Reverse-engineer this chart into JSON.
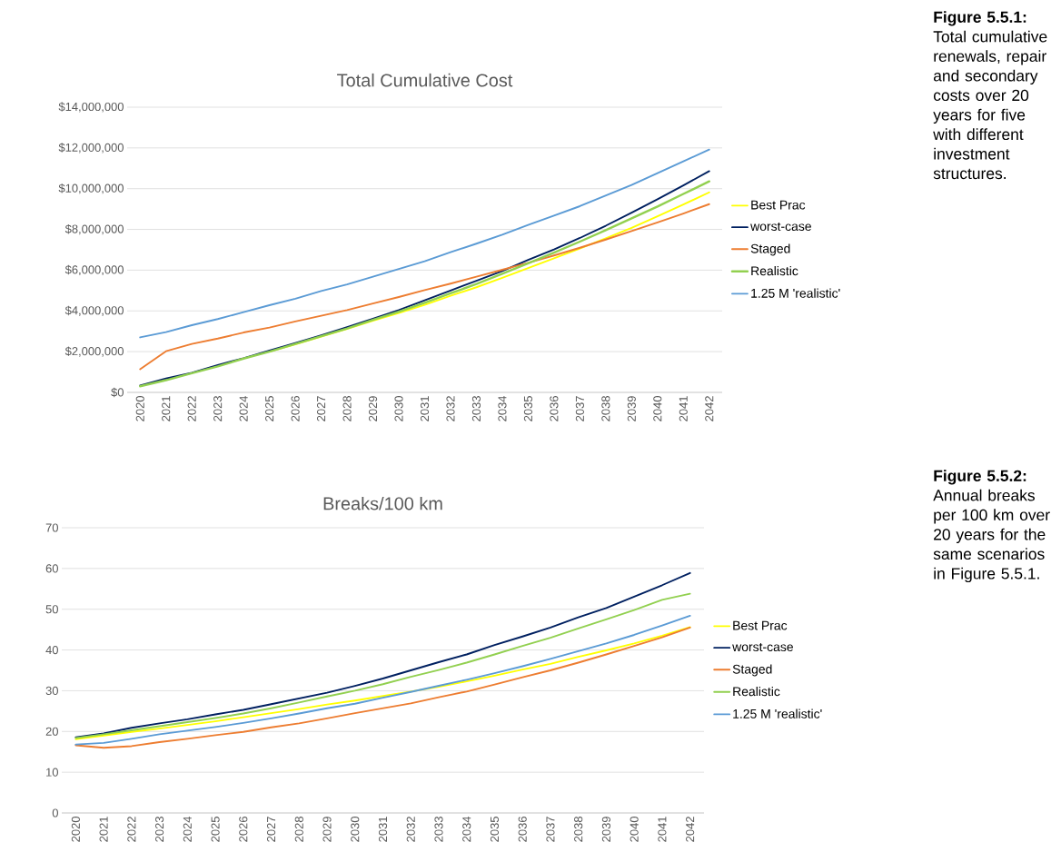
{
  "chart_data": [
    {
      "type": "line",
      "title": "Total Cumulative Cost",
      "categories": [
        "2020",
        "2021",
        "2022",
        "2023",
        "2024",
        "2025",
        "2026",
        "2027",
        "2028",
        "2029",
        "2030",
        "2031",
        "2032",
        "2033",
        "2034",
        "2035",
        "2036",
        "2037",
        "2038",
        "2039",
        "2040",
        "2041",
        "2042"
      ],
      "series": [
        {
          "name": "Best Prac",
          "color": "#ffff00",
          "values": [
            null,
            null,
            null,
            null,
            null,
            2000000,
            2360000,
            2740000,
            3120000,
            3520000,
            3900000,
            4300000,
            4740000,
            5160000,
            5620000,
            6100000,
            6580000,
            7060000,
            7560000,
            8080000,
            8640000,
            9220000,
            9820000
          ]
        },
        {
          "name": "worst-case",
          "color": "#002060",
          "values": [
            340000,
            680000,
            960000,
            1340000,
            1680000,
            2060000,
            2420000,
            2800000,
            3200000,
            3620000,
            4040000,
            4520000,
            5000000,
            5480000,
            5960000,
            6500000,
            7020000,
            7580000,
            8180000,
            8820000,
            9480000,
            10160000,
            10860000
          ]
        },
        {
          "name": "Staged",
          "color": "#ed7d31",
          "values": [
            1140000,
            2020000,
            2380000,
            2640000,
            2940000,
            3180000,
            3480000,
            3760000,
            4040000,
            4360000,
            4680000,
            5020000,
            5340000,
            5680000,
            6020000,
            6360000,
            6720000,
            7100000,
            7500000,
            7920000,
            8340000,
            8780000,
            9240000
          ]
        },
        {
          "name": "Realistic",
          "color": "#92d050",
          "values": [
            300000,
            600000,
            940000,
            1280000,
            1660000,
            2000000,
            2380000,
            2760000,
            3140000,
            3560000,
            3960000,
            4400000,
            4860000,
            5320000,
            5820000,
            6340000,
            6860000,
            7400000,
            7960000,
            8540000,
            9120000,
            9740000,
            10360000
          ]
        },
        {
          "name": "1.25 M 'realistic'",
          "color": "#5b9bd5",
          "values": [
            2700000,
            2960000,
            3300000,
            3600000,
            3940000,
            4280000,
            4600000,
            4980000,
            5300000,
            5680000,
            6060000,
            6440000,
            6880000,
            7300000,
            7740000,
            8220000,
            8680000,
            9140000,
            9660000,
            10180000,
            10760000,
            11340000,
            11920000
          ]
        }
      ],
      "ylim": [
        0,
        14000000
      ],
      "yticks": [
        {
          "value": 0,
          "label": "$0"
        },
        {
          "value": 2000000,
          "label": "$2,000,000"
        },
        {
          "value": 4000000,
          "label": "$4,000,000"
        },
        {
          "value": 6000000,
          "label": "$6,000,000"
        },
        {
          "value": 8000000,
          "label": "$8,000,000"
        },
        {
          "value": 10000000,
          "label": "$10,000,000"
        },
        {
          "value": 12000000,
          "label": "$12,000,000"
        },
        {
          "value": 14000000,
          "label": "$14,000,000"
        }
      ],
      "grid": "y",
      "legend": "right",
      "marker": "none",
      "annotations": [
        "**Figure 5.5.1:** Total cumulative renewals, repair and secondary costs over 20 years for five with different investment structures."
      ]
    },
    {
      "type": "line",
      "title": "Breaks/100 km",
      "categories": [
        "2020",
        "2021",
        "2022",
        "2023",
        "2024",
        "2025",
        "2026",
        "2027",
        "2028",
        "2029",
        "2030",
        "2031",
        "2032",
        "2033",
        "2034",
        "2035",
        "2036",
        "2037",
        "2038",
        "2039",
        "2040",
        "2041",
        "2042"
      ],
      "series": [
        {
          "name": "Best Prac",
          "color": "#ffff00",
          "values": [
            18.1,
            19.0,
            19.9,
            20.7,
            21.6,
            22.5,
            23.5,
            24.5,
            25.5,
            26.6,
            27.6,
            28.7,
            29.8,
            31.0,
            32.3,
            33.7,
            35.2,
            36.6,
            38.3,
            39.9,
            41.6,
            43.5,
            45.6
          ]
        },
        {
          "name": "worst-case",
          "color": "#002060",
          "values": [
            18.6,
            19.5,
            20.9,
            22.0,
            23.0,
            24.2,
            25.3,
            26.7,
            28.1,
            29.5,
            31.2,
            33.0,
            35.0,
            37.0,
            38.9,
            41.2,
            43.3,
            45.5,
            48.0,
            50.3,
            53.1,
            55.9,
            58.9
          ]
        },
        {
          "name": "Staged",
          "color": "#ed7d31",
          "values": [
            16.6,
            16.0,
            16.4,
            17.4,
            18.2,
            19.1,
            19.9,
            21.0,
            22.0,
            23.2,
            24.5,
            25.7,
            26.9,
            28.4,
            29.8,
            31.5,
            33.3,
            35.0,
            36.9,
            38.9,
            41.0,
            43.1,
            45.5
          ]
        },
        {
          "name": "Realistic",
          "color": "#92d050",
          "values": [
            18.4,
            19.3,
            20.3,
            21.3,
            22.3,
            23.3,
            24.4,
            25.7,
            27.1,
            28.6,
            30.0,
            31.6,
            33.4,
            35.1,
            36.9,
            38.9,
            41.0,
            43.0,
            45.3,
            47.5,
            49.8,
            52.3,
            53.8
          ]
        },
        {
          "name": "1.25 M 'realistic'",
          "color": "#5b9bd5",
          "values": [
            16.8,
            17.2,
            18.2,
            19.3,
            20.2,
            21.1,
            22.1,
            23.2,
            24.4,
            25.7,
            26.8,
            28.3,
            29.7,
            31.2,
            32.7,
            34.3,
            36.0,
            37.8,
            39.7,
            41.6,
            43.7,
            46.0,
            48.4
          ]
        }
      ],
      "ylim": [
        0,
        70
      ],
      "yticks": [
        0,
        10,
        20,
        30,
        40,
        50,
        60,
        70
      ],
      "grid": "y",
      "legend": "right",
      "marker": "none",
      "annotations": [
        "**Figure 5.5.2:** Annual breaks per 100 km over 20 years for the same scenarios in Figure 5.5.1."
      ]
    }
  ]
}
